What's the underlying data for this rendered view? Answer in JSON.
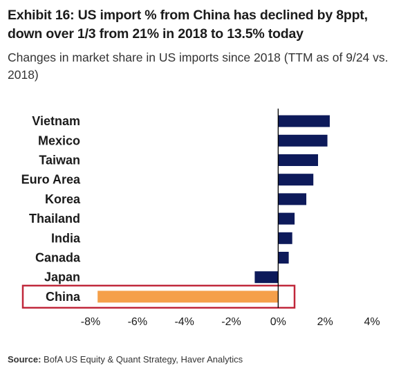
{
  "header": {
    "title": "Exhibit 16: US import % from China has declined by 8ppt, down over 1/3 from 21% in 2018 to 13.5% today",
    "subtitle": "Changes in market share in US imports since 2018 (TTM as of 9/24 vs. 2018)"
  },
  "footer": {
    "source_label": "Source:",
    "source_text": "BofA US Equity & Quant Strategy, Haver Analytics"
  },
  "colors": {
    "bar": "#0d1a5a",
    "highlight_bar": "#f5a04a",
    "highlight_box": "#c0273a",
    "axis": "#000000"
  },
  "chart_data": {
    "type": "bar",
    "orientation": "horizontal",
    "categories": [
      "Vietnam",
      "Mexico",
      "Taiwan",
      "Euro Area",
      "Korea",
      "Thailand",
      "India",
      "Canada",
      "Japan",
      "China"
    ],
    "values": [
      2.2,
      2.1,
      1.7,
      1.5,
      1.2,
      0.7,
      0.6,
      0.45,
      -1.0,
      -7.7
    ],
    "highlight": "China",
    "xlim": [
      -8,
      4
    ],
    "xticks": [
      -8,
      -6,
      -4,
      -2,
      0,
      2,
      4
    ],
    "xtick_labels": [
      "-8%",
      "-6%",
      "-4%",
      "-2%",
      "0%",
      "2%",
      "4%"
    ],
    "grid": false,
    "legend": "none"
  }
}
